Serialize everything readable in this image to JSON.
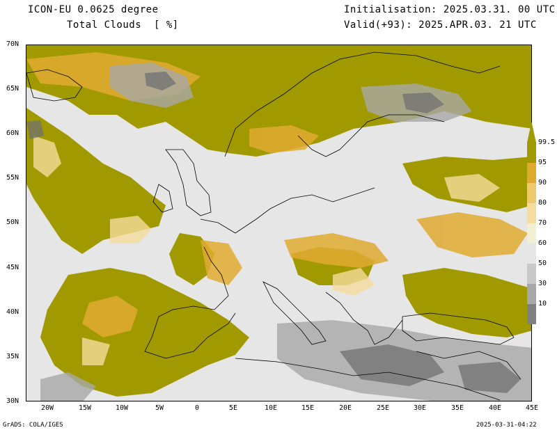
{
  "header": {
    "model": "ICON-EU 0.0625 degree",
    "field": "Total Clouds  [ %]",
    "init": "Initialisation: 2025.03.31. 00 UTC",
    "valid": "Valid(+93): 2025.APR.03. 21 UTC"
  },
  "footer": {
    "left": "GrADS: COLA/IGES",
    "right": "2025-03-31-04:22"
  },
  "axes": {
    "lat_labels": [
      "70N",
      "65N",
      "60N",
      "55N",
      "50N",
      "45N",
      "40N",
      "35N",
      "30N"
    ],
    "lon_labels": [
      "20W",
      "15W",
      "10W",
      "5W",
      "0",
      "5E",
      "10E",
      "15E",
      "20E",
      "25E",
      "30E",
      "35E",
      "40E",
      "45E"
    ]
  },
  "colorbar": {
    "labels": [
      "99.5",
      "95",
      "90",
      "80",
      "70",
      "60",
      "50",
      "30",
      "10"
    ],
    "colors": [
      "#a09a00",
      "#e0aa30",
      "#f0c870",
      "#f5dc9c",
      "#f2efd0",
      "#e6e6e6",
      "#c8c8c8",
      "#a8a8a8",
      "#808080",
      "#606060"
    ]
  }
}
